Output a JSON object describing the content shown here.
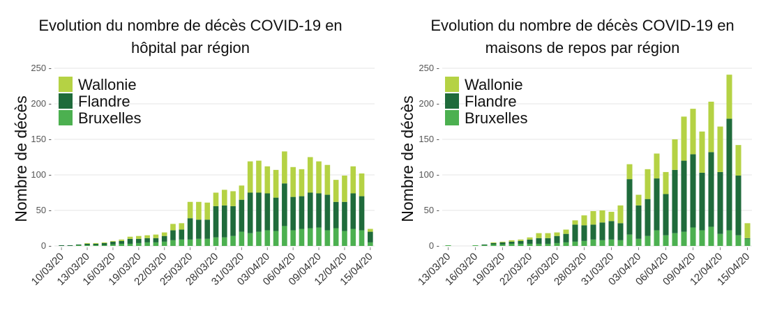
{
  "colors": {
    "wallonie": "#b5d244",
    "flandre": "#1f6b3b",
    "bruxelles": "#4cb050"
  },
  "chart_data": [
    {
      "type": "bar",
      "stacked": true,
      "title_line1": "Evolution du nombre de décès COVID-19 en",
      "title_line2": "hôpital par région",
      "xlabel": "",
      "ylabel": "Nombre de décès",
      "ylim": [
        0,
        250
      ],
      "yticks": [
        0,
        50,
        100,
        150,
        200,
        250
      ],
      "legend": [
        "Wallonie",
        "Flandre",
        "Bruxelles"
      ],
      "legend_position": "top-left",
      "grid": true,
      "first_day": 10,
      "tick_labels": [
        "10/03/20",
        "13/03/20",
        "16/03/20",
        "19/03/20",
        "22/03/20",
        "25/03/20",
        "28/03/20",
        "31/03/20",
        "03/04/20",
        "06/04/20",
        "09/04/20",
        "12/04/20",
        "15/04/20"
      ],
      "categories": [
        "10/03",
        "11/03",
        "12/03",
        "13/03",
        "14/03",
        "15/03",
        "16/03",
        "17/03",
        "18/03",
        "19/03",
        "20/03",
        "21/03",
        "22/03",
        "23/03",
        "24/03",
        "25/03",
        "26/03",
        "27/03",
        "28/03",
        "29/03",
        "30/03",
        "31/03",
        "01/04",
        "02/04",
        "03/04",
        "04/04",
        "05/04",
        "06/04",
        "07/04",
        "08/04",
        "09/04",
        "10/04",
        "11/04",
        "12/04",
        "13/04",
        "14/04",
        "15/04"
      ],
      "series": [
        {
          "name": "Bruxelles",
          "values": [
            0,
            0,
            1,
            1,
            1,
            1,
            2,
            3,
            3,
            4,
            5,
            5,
            6,
            8,
            9,
            9,
            10,
            10,
            12,
            12,
            14,
            20,
            18,
            20,
            22,
            21,
            28,
            22,
            24,
            25,
            26,
            22,
            25,
            21,
            24,
            22,
            5
          ]
        },
        {
          "name": "Flandre",
          "values": [
            1,
            1,
            1,
            2,
            2,
            3,
            4,
            4,
            7,
            6,
            6,
            6,
            8,
            14,
            14,
            30,
            27,
            27,
            44,
            45,
            42,
            45,
            57,
            55,
            52,
            47,
            60,
            47,
            46,
            50,
            48,
            50,
            37,
            41,
            50,
            48,
            15
          ]
        },
        {
          "name": "Wallonie",
          "values": [
            0,
            0,
            0,
            1,
            1,
            1,
            1,
            2,
            3,
            4,
            4,
            5,
            5,
            9,
            9,
            23,
            25,
            24,
            19,
            22,
            21,
            20,
            44,
            45,
            38,
            39,
            45,
            42,
            38,
            50,
            45,
            42,
            31,
            37,
            38,
            32,
            4
          ]
        }
      ]
    },
    {
      "type": "bar",
      "stacked": true,
      "title_line1": "Evolution du nombre de décès COVID-19 en",
      "title_line2": "maisons de repos par région",
      "xlabel": "",
      "ylabel": "Nombre de décès",
      "ylim": [
        0,
        250
      ],
      "yticks": [
        0,
        50,
        100,
        150,
        200,
        250
      ],
      "legend": [
        "Wallonie",
        "Flandre",
        "Bruxelles"
      ],
      "legend_position": "top-left",
      "grid": true,
      "first_day": 13,
      "tick_labels": [
        "13/03/20",
        "16/03/20",
        "19/03/20",
        "22/03/20",
        "25/03/20",
        "28/03/20",
        "31/03/20",
        "03/04/20",
        "06/04/20",
        "09/04/20",
        "12/04/20",
        "15/04/20"
      ],
      "categories": [
        "13/03",
        "14/03",
        "15/03",
        "16/03",
        "17/03",
        "18/03",
        "19/03",
        "20/03",
        "21/03",
        "22/03",
        "23/03",
        "24/03",
        "25/03",
        "26/03",
        "27/03",
        "28/03",
        "29/03",
        "30/03",
        "31/03",
        "01/04",
        "02/04",
        "03/04",
        "04/04",
        "05/04",
        "06/04",
        "07/04",
        "08/04",
        "09/04",
        "10/04",
        "11/04",
        "12/04",
        "13/04",
        "14/04",
        "15/04"
      ],
      "series": [
        {
          "name": "Bruxelles",
          "values": [
            1,
            0,
            0,
            1,
            1,
            2,
            2,
            3,
            3,
            3,
            3,
            3,
            4,
            5,
            6,
            7,
            9,
            8,
            9,
            8,
            16,
            10,
            14,
            22,
            15,
            18,
            20,
            26,
            22,
            27,
            17,
            22,
            15,
            10
          ]
        },
        {
          "name": "Flandre",
          "values": [
            0,
            0,
            0,
            0,
            1,
            2,
            3,
            3,
            4,
            6,
            8,
            8,
            10,
            12,
            24,
            22,
            21,
            25,
            26,
            24,
            78,
            47,
            52,
            73,
            58,
            89,
            100,
            103,
            81,
            105,
            87,
            157,
            84,
            1
          ]
        },
        {
          "name": "Wallonie",
          "values": [
            0,
            0,
            0,
            0,
            0,
            1,
            1,
            2,
            2,
            3,
            7,
            7,
            5,
            6,
            6,
            14,
            19,
            17,
            13,
            25,
            21,
            15,
            42,
            35,
            31,
            43,
            62,
            64,
            58,
            71,
            64,
            62,
            43,
            21
          ]
        }
      ]
    }
  ]
}
